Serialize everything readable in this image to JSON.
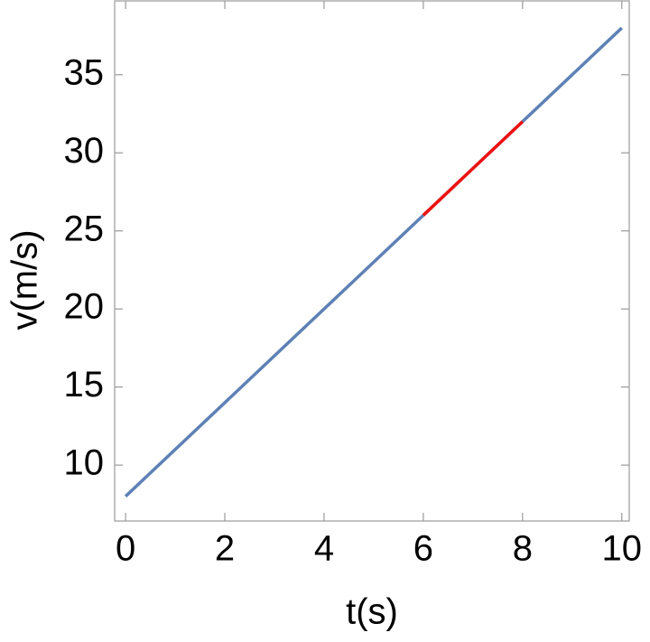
{
  "chart_data": {
    "type": "line",
    "x_label": "t(s)",
    "y_label": "v(m/s)",
    "xlim": [
      -0.22,
      10.15
    ],
    "ylim": [
      6.42,
      39.73
    ],
    "xticks": [
      0,
      2,
      4,
      6,
      8,
      10
    ],
    "yticks": [
      10,
      15,
      20,
      25,
      30,
      35
    ],
    "series": [
      {
        "color": "#5e81b5",
        "x": [
          0,
          10
        ],
        "values": [
          8,
          38
        ]
      },
      {
        "color": "#ee1111",
        "x": [
          6,
          8
        ],
        "values": [
          26,
          32
        ]
      }
    ]
  }
}
